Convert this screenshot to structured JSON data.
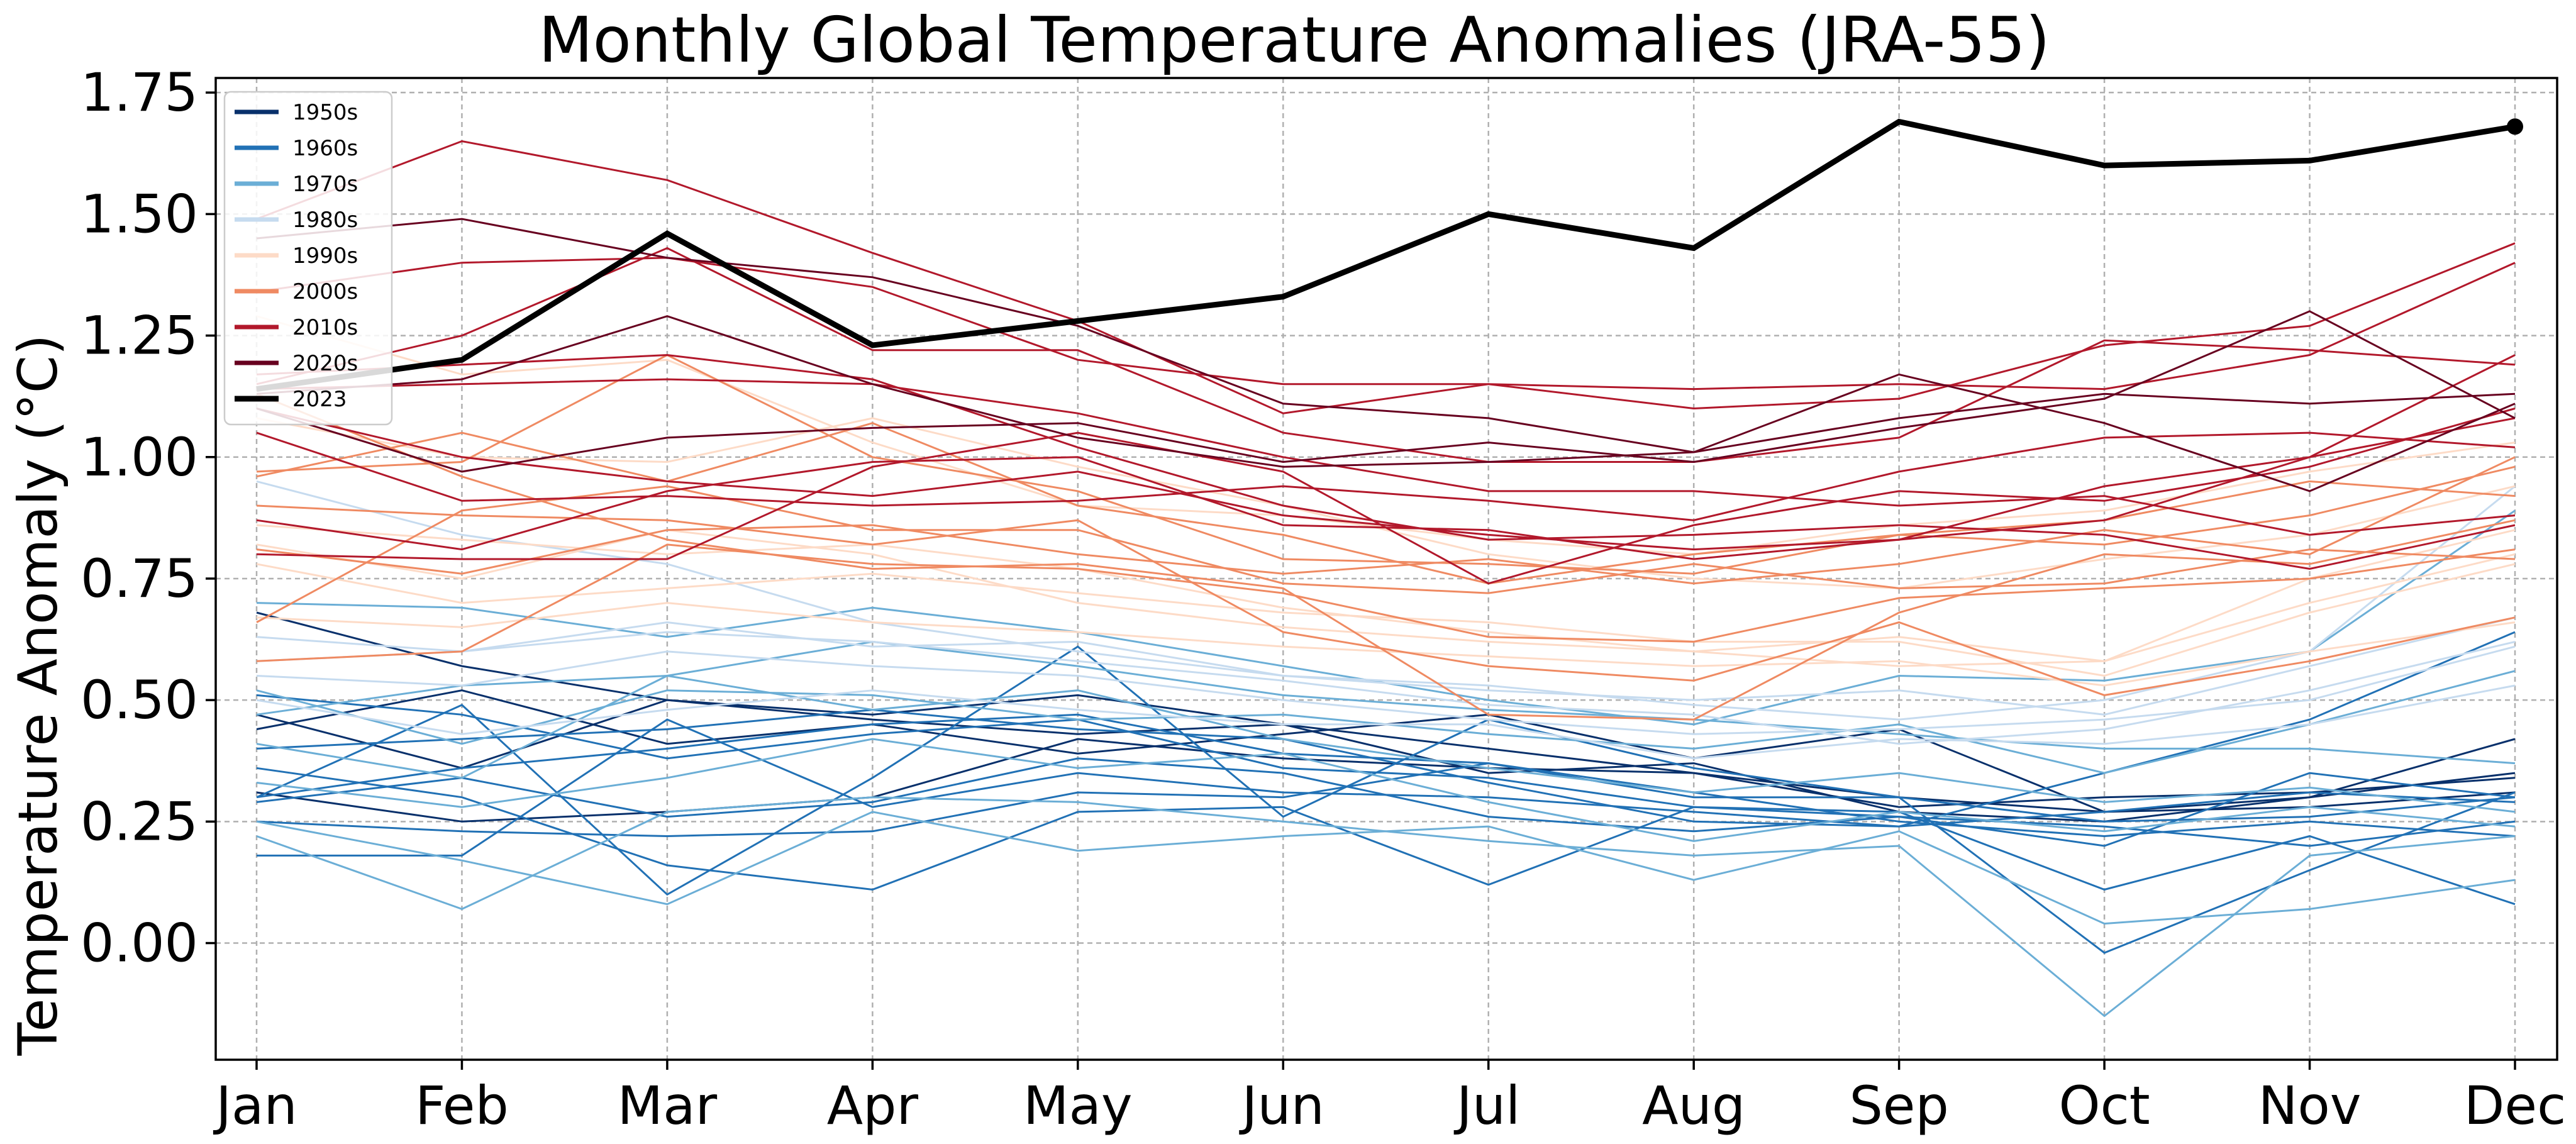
{
  "chart_data": {
    "type": "line",
    "title": "Monthly Global Temperature Anomalies (JRA-55)",
    "xlabel": "",
    "ylabel": "Temperature Anomaly (°C)",
    "categories": [
      "Jan",
      "Feb",
      "Mar",
      "Apr",
      "May",
      "Jun",
      "Jul",
      "Aug",
      "Sep",
      "Oct",
      "Nov",
      "Dec"
    ],
    "ylim": [
      -0.24,
      1.78
    ],
    "yticks": [
      "0.00",
      "0.25",
      "0.50",
      "0.75",
      "1.00",
      "1.25",
      "1.50",
      "1.75"
    ],
    "grid": true,
    "legend_position": "upper-left",
    "legend": [
      {
        "name": "1950s",
        "color": "#08306b"
      },
      {
        "name": "1960s",
        "color": "#2171b5"
      },
      {
        "name": "1970s",
        "color": "#6baed6"
      },
      {
        "name": "1980s",
        "color": "#c6dbef"
      },
      {
        "name": "1990s",
        "color": "#fddbc7"
      },
      {
        "name": "2000s",
        "color": "#ef8a62"
      },
      {
        "name": "2010s",
        "color": "#b2182b"
      },
      {
        "name": "2020s",
        "color": "#67001f"
      },
      {
        "name": "2023",
        "color": "#000000"
      }
    ],
    "series": [
      {
        "name": "1950s",
        "color": "#08306b",
        "values": [
          0.68,
          0.57,
          0.5,
          0.47,
          0.51,
          0.45,
          0.4,
          0.35,
          0.3,
          0.27,
          0.3,
          0.35
        ]
      },
      {
        "name": "1950s",
        "color": "#08306b",
        "values": [
          0.47,
          0.36,
          0.5,
          0.46,
          0.43,
          0.45,
          0.35,
          0.37,
          0.27,
          0.25,
          0.3,
          0.42
        ]
      },
      {
        "name": "1950s",
        "color": "#08306b",
        "values": [
          0.31,
          0.25,
          0.27,
          0.3,
          0.42,
          0.38,
          0.36,
          0.35,
          0.28,
          0.3,
          0.31,
          0.34
        ]
      },
      {
        "name": "1950s",
        "color": "#08306b",
        "values": [
          0.44,
          0.52,
          0.41,
          0.45,
          0.39,
          0.43,
          0.47,
          0.38,
          0.44,
          0.27,
          0.28,
          0.31
        ]
      },
      {
        "name": "1960s",
        "color": "#2171b5",
        "values": [
          0.36,
          0.3,
          0.16,
          0.11,
          0.27,
          0.28,
          0.12,
          0.28,
          0.27,
          0.11,
          0.22,
          0.08
        ]
      },
      {
        "name": "1960s",
        "color": "#2171b5",
        "values": [
          0.3,
          0.49,
          0.1,
          0.34,
          0.61,
          0.26,
          0.46,
          0.36,
          0.3,
          -0.02,
          0.15,
          0.31
        ]
      },
      {
        "name": "1960s",
        "color": "#2171b5",
        "values": [
          0.18,
          0.18,
          0.46,
          0.28,
          0.35,
          0.31,
          0.3,
          0.27,
          0.24,
          0.35,
          0.46,
          0.64
        ]
      },
      {
        "name": "1960s",
        "color": "#2171b5",
        "values": [
          0.3,
          0.36,
          0.4,
          0.45,
          0.47,
          0.39,
          0.37,
          0.3,
          0.3,
          0.25,
          0.26,
          0.3
        ]
      },
      {
        "name": "1960s",
        "color": "#2171b5",
        "values": [
          0.51,
          0.47,
          0.38,
          0.43,
          0.46,
          0.36,
          0.34,
          0.28,
          0.26,
          0.24,
          0.2,
          0.25
        ]
      },
      {
        "name": "1960s",
        "color": "#2171b5",
        "values": [
          0.4,
          0.42,
          0.44,
          0.48,
          0.44,
          0.42,
          0.33,
          0.25,
          0.24,
          0.27,
          0.31,
          0.29
        ]
      },
      {
        "name": "1960s",
        "color": "#2171b5",
        "values": [
          0.29,
          0.34,
          0.26,
          0.29,
          0.38,
          0.35,
          0.26,
          0.23,
          0.26,
          0.2,
          0.35,
          0.3
        ]
      },
      {
        "name": "1960s",
        "color": "#2171b5",
        "values": [
          0.25,
          0.23,
          0.22,
          0.23,
          0.31,
          0.3,
          0.37,
          0.31,
          0.25,
          0.22,
          0.25,
          0.22
        ]
      },
      {
        "name": "1970s",
        "color": "#6baed6",
        "values": [
          0.22,
          0.07,
          0.27,
          0.3,
          0.29,
          0.25,
          0.21,
          0.18,
          0.2,
          -0.15,
          0.18,
          0.22
        ]
      },
      {
        "name": "1970s",
        "color": "#6baed6",
        "values": [
          0.25,
          0.17,
          0.08,
          0.27,
          0.19,
          0.22,
          0.24,
          0.13,
          0.23,
          0.04,
          0.07,
          0.13
        ]
      },
      {
        "name": "1970s",
        "color": "#6baed6",
        "values": [
          0.52,
          0.41,
          0.52,
          0.51,
          0.46,
          0.47,
          0.43,
          0.4,
          0.45,
          0.35,
          0.45,
          0.56
        ]
      },
      {
        "name": "1970s",
        "color": "#6baed6",
        "values": [
          0.7,
          0.69,
          0.63,
          0.69,
          0.64,
          0.57,
          0.5,
          0.45,
          0.55,
          0.54,
          0.6,
          0.89
        ]
      },
      {
        "name": "1970s",
        "color": "#6baed6",
        "values": [
          0.41,
          0.34,
          0.55,
          0.62,
          0.57,
          0.51,
          0.48,
          0.46,
          0.43,
          0.4,
          0.4,
          0.37
        ]
      },
      {
        "name": "1970s",
        "color": "#6baed6",
        "values": [
          0.33,
          0.28,
          0.34,
          0.42,
          0.36,
          0.39,
          0.29,
          0.21,
          0.27,
          0.23,
          0.28,
          0.24
        ]
      },
      {
        "name": "1970s",
        "color": "#6baed6",
        "values": [
          0.47,
          0.53,
          0.55,
          0.48,
          0.52,
          0.42,
          0.36,
          0.31,
          0.35,
          0.29,
          0.32,
          0.27
        ]
      },
      {
        "name": "1980s",
        "color": "#c6dbef",
        "values": [
          0.95,
          0.84,
          0.78,
          0.66,
          0.6,
          0.55,
          0.52,
          0.5,
          0.52,
          0.47,
          0.57,
          0.67
        ]
      },
      {
        "name": "1980s",
        "color": "#c6dbef",
        "values": [
          0.58,
          0.6,
          0.64,
          0.62,
          0.58,
          0.54,
          0.49,
          0.47,
          0.41,
          0.44,
          0.52,
          0.62
        ]
      },
      {
        "name": "1980s",
        "color": "#c6dbef",
        "values": [
          0.63,
          0.6,
          0.66,
          0.61,
          0.62,
          0.55,
          0.53,
          0.49,
          0.46,
          0.5,
          0.6,
          0.94
        ]
      },
      {
        "name": "1980s",
        "color": "#c6dbef",
        "values": [
          0.5,
          0.43,
          0.48,
          0.52,
          0.48,
          0.45,
          0.45,
          0.38,
          0.42,
          0.41,
          0.45,
          0.53
        ]
      },
      {
        "name": "1980s",
        "color": "#c6dbef",
        "values": [
          0.55,
          0.53,
          0.6,
          0.57,
          0.55,
          0.5,
          0.46,
          0.43,
          0.44,
          0.46,
          0.5,
          0.61
        ]
      },
      {
        "name": "1990s",
        "color": "#fddbc7",
        "values": [
          0.82,
          0.75,
          0.85,
          0.8,
          0.7,
          0.65,
          0.62,
          0.6,
          0.57,
          0.58,
          0.7,
          0.8
        ]
      },
      {
        "name": "1990s",
        "color": "#fddbc7",
        "values": [
          0.78,
          0.7,
          0.73,
          0.76,
          0.72,
          0.68,
          0.66,
          0.62,
          0.62,
          0.55,
          0.68,
          0.78
        ]
      },
      {
        "name": "1990s",
        "color": "#fddbc7",
        "values": [
          0.86,
          0.83,
          0.8,
          0.82,
          0.77,
          0.69,
          0.64,
          0.6,
          0.63,
          0.58,
          0.75,
          0.85
        ]
      },
      {
        "name": "1990s",
        "color": "#fddbc7",
        "values": [
          1.08,
          1.0,
          0.99,
          1.08,
          0.98,
          0.9,
          0.8,
          0.75,
          0.73,
          0.79,
          0.84,
          0.94
        ]
      },
      {
        "name": "1990s",
        "color": "#fddbc7",
        "values": [
          1.29,
          1.17,
          1.2,
          1.03,
          0.9,
          0.88,
          0.83,
          0.8,
          0.86,
          0.89,
          0.97,
          1.03
        ]
      },
      {
        "name": "1990s",
        "color": "#fddbc7",
        "values": [
          0.67,
          0.65,
          0.7,
          0.66,
          0.64,
          0.61,
          0.59,
          0.57,
          0.58,
          0.53,
          0.6,
          0.66
        ]
      },
      {
        "name": "2000s",
        "color": "#ef8a62",
        "values": [
          0.97,
          0.99,
          1.21,
          1.0,
          0.93,
          0.79,
          0.78,
          0.76,
          0.84,
          0.87,
          0.95,
          0.92
        ]
      },
      {
        "name": "2000s",
        "color": "#ef8a62",
        "values": [
          0.58,
          0.6,
          0.82,
          0.78,
          0.77,
          0.72,
          0.63,
          0.62,
          0.71,
          0.73,
          0.75,
          0.81
        ]
      },
      {
        "name": "2000s",
        "color": "#ef8a62",
        "values": [
          0.9,
          0.88,
          0.87,
          0.82,
          0.87,
          0.64,
          0.57,
          0.54,
          0.66,
          0.51,
          0.58,
          0.67
        ]
      },
      {
        "name": "2000s",
        "color": "#ef8a62",
        "values": [
          0.66,
          0.89,
          0.94,
          0.85,
          0.85,
          0.74,
          0.72,
          0.78,
          0.73,
          0.74,
          0.81,
          0.79
        ]
      },
      {
        "name": "2000s",
        "color": "#ef8a62",
        "values": [
          0.96,
          1.05,
          0.95,
          1.07,
          0.9,
          0.84,
          0.74,
          0.8,
          0.84,
          0.82,
          0.88,
          0.98
        ]
      },
      {
        "name": "2000s",
        "color": "#ef8a62",
        "values": [
          1.13,
          0.96,
          0.83,
          0.77,
          0.78,
          0.73,
          0.47,
          0.46,
          0.68,
          0.8,
          0.78,
          0.87
        ]
      },
      {
        "name": "2000s",
        "color": "#ef8a62",
        "values": [
          0.81,
          0.76,
          0.85,
          0.86,
          0.8,
          0.76,
          0.79,
          0.74,
          0.78,
          0.85,
          0.8,
          1.0
        ]
      },
      {
        "name": "2010s",
        "color": "#b2182b",
        "values": [
          1.49,
          1.65,
          1.57,
          1.42,
          1.28,
          1.09,
          1.15,
          1.1,
          1.12,
          1.23,
          1.27,
          1.44
        ]
      },
      {
        "name": "2010s",
        "color": "#b2182b",
        "values": [
          1.34,
          1.4,
          1.41,
          1.35,
          1.2,
          1.15,
          1.15,
          1.14,
          1.15,
          1.14,
          1.21,
          1.4
        ]
      },
      {
        "name": "2010s",
        "color": "#b2182b",
        "values": [
          1.15,
          1.25,
          1.43,
          1.22,
          1.22,
          1.05,
          0.99,
          0.99,
          1.04,
          1.24,
          1.22,
          1.19
        ]
      },
      {
        "name": "2010s",
        "color": "#b2182b",
        "values": [
          0.87,
          0.81,
          0.93,
          0.99,
          1.0,
          0.86,
          0.85,
          0.79,
          0.83,
          0.94,
          1.0,
          1.21
        ]
      },
      {
        "name": "2010s",
        "color": "#b2182b",
        "values": [
          0.8,
          0.79,
          0.79,
          0.98,
          1.05,
          0.97,
          0.74,
          0.86,
          0.93,
          0.91,
          0.98,
          1.1
        ]
      },
      {
        "name": "2010s",
        "color": "#b2182b",
        "values": [
          1.05,
          0.91,
          0.92,
          0.9,
          0.91,
          0.94,
          0.91,
          0.87,
          0.97,
          1.04,
          1.05,
          1.02
        ]
      },
      {
        "name": "2010s",
        "color": "#b2182b",
        "values": [
          1.14,
          1.15,
          1.16,
          1.15,
          1.09,
          1.0,
          0.93,
          0.93,
          0.9,
          0.92,
          0.84,
          0.88
        ]
      },
      {
        "name": "2010s",
        "color": "#b2182b",
        "values": [
          1.17,
          1.19,
          1.21,
          1.16,
          1.02,
          0.9,
          0.83,
          0.84,
          0.86,
          0.84,
          0.77,
          0.86
        ]
      },
      {
        "name": "2010s",
        "color": "#b2182b",
        "values": [
          1.1,
          1.0,
          0.95,
          0.92,
          0.97,
          0.88,
          0.84,
          0.81,
          0.83,
          0.87,
          1.0,
          1.08
        ]
      },
      {
        "name": "2020s",
        "color": "#67001f",
        "values": [
          1.45,
          1.49,
          1.41,
          1.37,
          1.27,
          1.11,
          1.08,
          1.01,
          1.17,
          1.07,
          0.93,
          1.11
        ]
      },
      {
        "name": "2020s",
        "color": "#67001f",
        "values": [
          1.1,
          0.97,
          1.04,
          1.06,
          1.07,
          0.99,
          1.03,
          0.99,
          1.06,
          1.12,
          1.3,
          1.08
        ]
      },
      {
        "name": "2020s",
        "color": "#67001f",
        "values": [
          1.13,
          1.16,
          1.29,
          1.15,
          1.04,
          0.98,
          0.99,
          1.01,
          1.08,
          1.13,
          1.11,
          1.13
        ]
      },
      {
        "name": "2023",
        "color": "#000000",
        "emphasis": true,
        "values": [
          1.14,
          1.2,
          1.46,
          1.23,
          1.28,
          1.33,
          1.5,
          1.43,
          1.69,
          1.6,
          1.61,
          1.68
        ]
      }
    ]
  }
}
